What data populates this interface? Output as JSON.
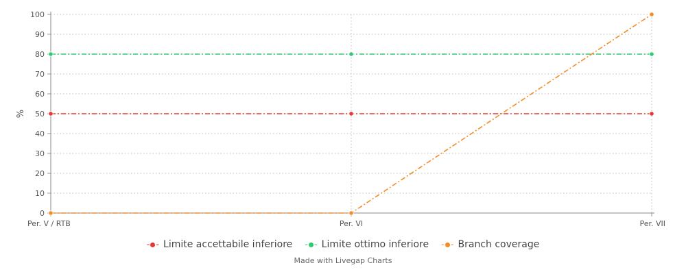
{
  "chart_data": {
    "type": "line",
    "categories": [
      "Per. V / RTB",
      "Per. VI",
      "Per. VII"
    ],
    "ylabel": "%",
    "ylim": [
      0,
      100
    ],
    "yticks": [
      0,
      10,
      20,
      30,
      40,
      50,
      60,
      70,
      80,
      90,
      100
    ],
    "grid": true,
    "legend_position": "bottom",
    "series": [
      {
        "name": "Limite accettabile inferiore",
        "values": [
          50,
          50,
          50
        ],
        "color": "#e53935"
      },
      {
        "name": "Limite ottimo inferiore",
        "values": [
          80,
          80,
          80
        ],
        "color": "#2ecc71"
      },
      {
        "name": "Branch coverage",
        "values": [
          0,
          0,
          100
        ],
        "color": "#f28c28"
      }
    ]
  },
  "credit": "Made with Livegap Charts"
}
